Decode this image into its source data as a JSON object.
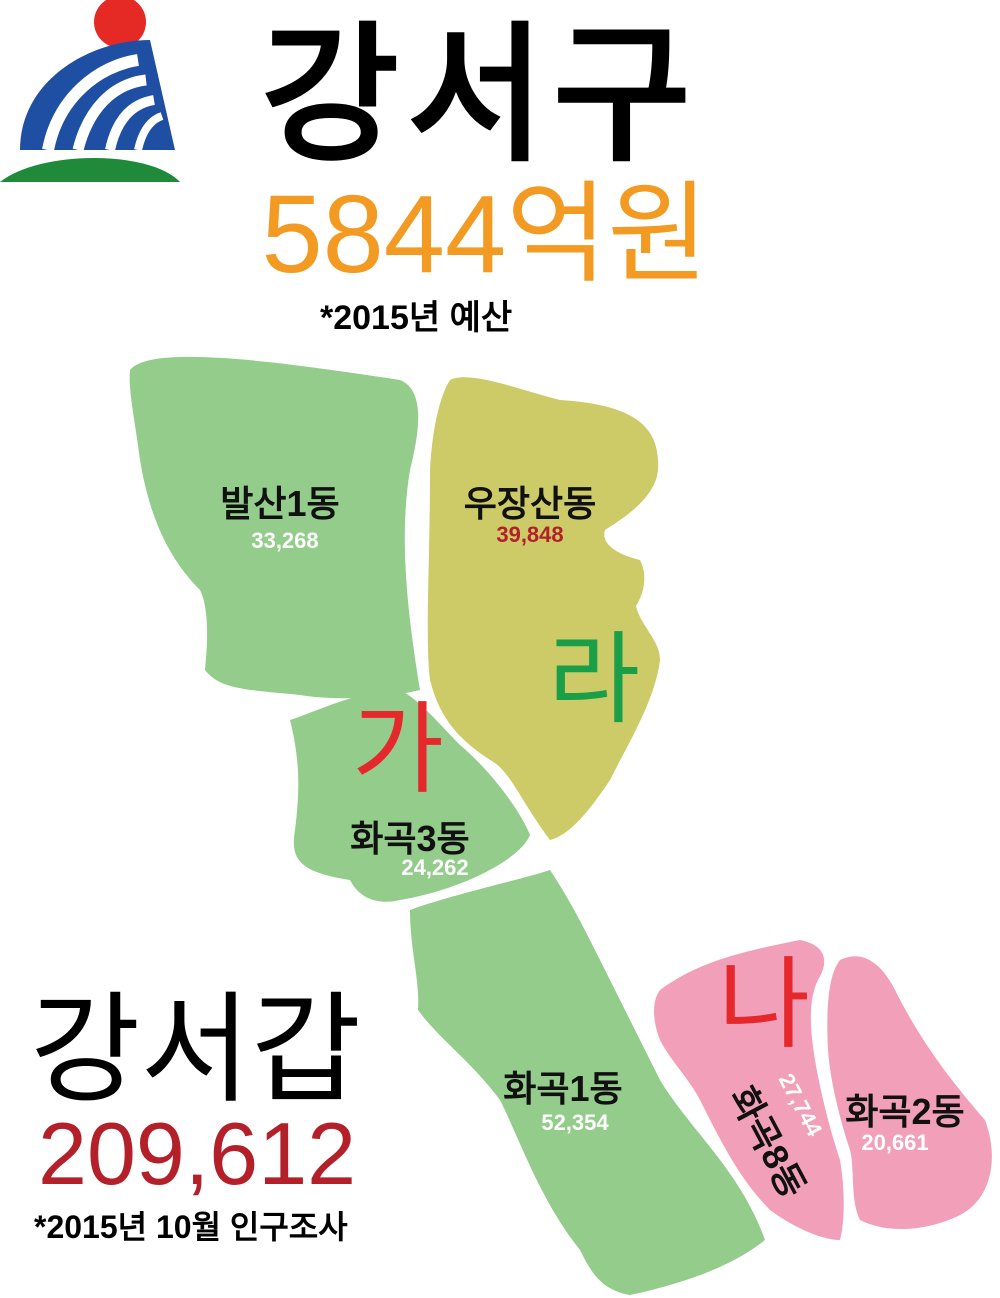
{
  "title": "강서구",
  "budget": {
    "amount": "5844억원",
    "note": "*2015년 예산"
  },
  "district": {
    "name": "강서갑",
    "population": "209,612",
    "note": "*2015년 10월 인구조사"
  },
  "colors": {
    "green_region": "#93cc8b",
    "olive_region": "#cccb68",
    "pink_region": "#f29fba",
    "orange": "#f39a22",
    "red": "#b4202a",
    "letter_red": "#e5282c",
    "letter_green": "#1a9e48"
  },
  "zones": [
    {
      "letter": "가",
      "color": "#e5282c"
    },
    {
      "letter": "라",
      "color": "#1a9e48"
    },
    {
      "letter": "나",
      "color": "#e5282c"
    }
  ],
  "dongs": [
    {
      "name": "발산1동",
      "population": "33,268"
    },
    {
      "name": "우장산동",
      "population": "39,848"
    },
    {
      "name": "화곡3동",
      "population": "24,262"
    },
    {
      "name": "화곡1동",
      "population": "52,354"
    },
    {
      "name": "화곡8동",
      "population": "27,744"
    },
    {
      "name": "화곡2동",
      "population": "20,661"
    }
  ],
  "logo": {
    "icon": "gangseo-district-logo"
  }
}
